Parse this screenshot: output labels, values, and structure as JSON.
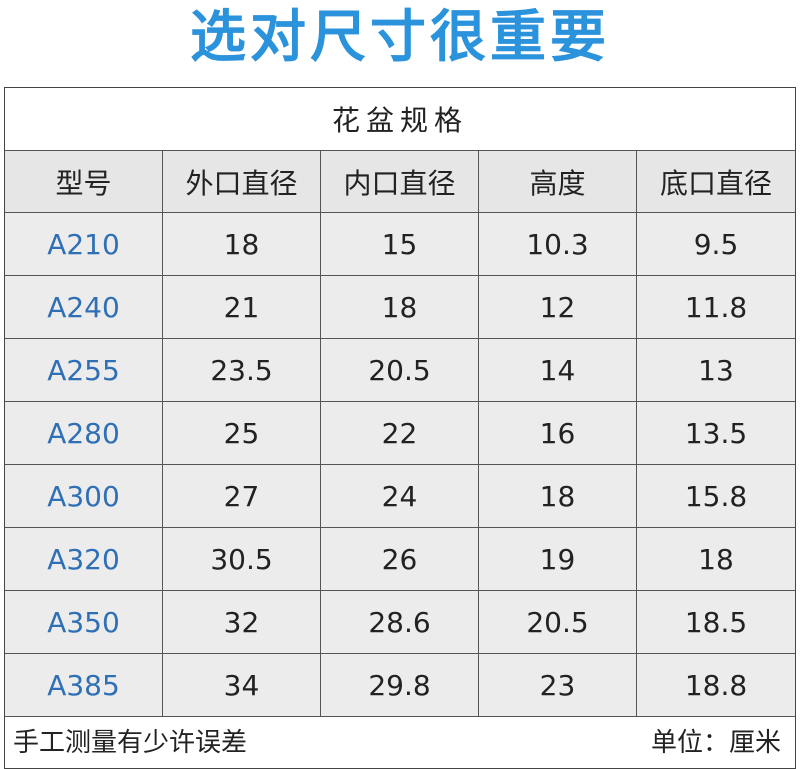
{
  "title": "选对尺寸很重要",
  "table": {
    "caption": "花盆规格",
    "header": [
      "型号",
      "外口直径",
      "内口直径",
      "高度",
      "底口直径"
    ],
    "rows": [
      [
        "A210",
        "18",
        "15",
        "10.3",
        "9.5"
      ],
      [
        "A240",
        "21",
        "18",
        "12",
        "11.8"
      ],
      [
        "A255",
        "23.5",
        "20.5",
        "14",
        "13"
      ],
      [
        "A280",
        "25",
        "22",
        "16",
        "13.5"
      ],
      [
        "A300",
        "27",
        "24",
        "18",
        "15.8"
      ],
      [
        "A320",
        "30.5",
        "26",
        "19",
        "18"
      ],
      [
        "A350",
        "32",
        "28.6",
        "20.5",
        "18.5"
      ],
      [
        "A385",
        "34",
        "29.8",
        "23",
        "18.8"
      ]
    ]
  },
  "footer": {
    "note": "手工测量有少许误差",
    "unit": "单位：厘米"
  }
}
